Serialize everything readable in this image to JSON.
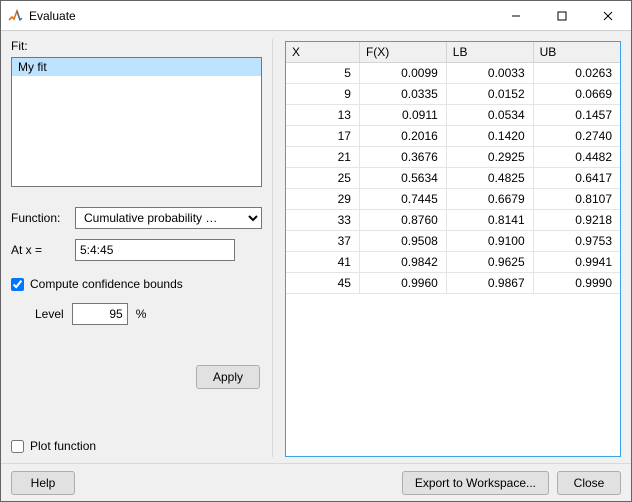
{
  "window": {
    "title": "Evaluate"
  },
  "left": {
    "fit_label": "Fit:",
    "fit_items": [
      "My fit"
    ],
    "function_label": "Function:",
    "function_value": "Cumulative probability …",
    "atx_label": "At x =",
    "atx_value": "5:4:45",
    "compute_bounds_label": "Compute confidence bounds",
    "compute_bounds_checked": true,
    "level_label": "Level",
    "level_value": "95",
    "level_suffix": "%",
    "apply_label": "Apply",
    "plot_label": "Plot function",
    "plot_checked": false
  },
  "table": {
    "columns": [
      "X",
      "F(X)",
      "LB",
      "UB"
    ],
    "column_widths": [
      "22%",
      "26%",
      "26%",
      "26%"
    ],
    "rows": [
      [
        "5",
        "0.0099",
        "0.0033",
        "0.0263"
      ],
      [
        "9",
        "0.0335",
        "0.0152",
        "0.0669"
      ],
      [
        "13",
        "0.0911",
        "0.0534",
        "0.1457"
      ],
      [
        "17",
        "0.2016",
        "0.1420",
        "0.2740"
      ],
      [
        "21",
        "0.3676",
        "0.2925",
        "0.4482"
      ],
      [
        "25",
        "0.5634",
        "0.4825",
        "0.6417"
      ],
      [
        "29",
        "0.7445",
        "0.6679",
        "0.8107"
      ],
      [
        "33",
        "0.8760",
        "0.8141",
        "0.9218"
      ],
      [
        "37",
        "0.9508",
        "0.9100",
        "0.9753"
      ],
      [
        "41",
        "0.9842",
        "0.9625",
        "0.9941"
      ],
      [
        "45",
        "0.9960",
        "0.9867",
        "0.9990"
      ]
    ]
  },
  "buttons": {
    "help": "Help",
    "export": "Export to Workspace...",
    "close": "Close"
  },
  "colors": {
    "selection": "#bde3ff",
    "table_border": "#3ba1e6"
  }
}
